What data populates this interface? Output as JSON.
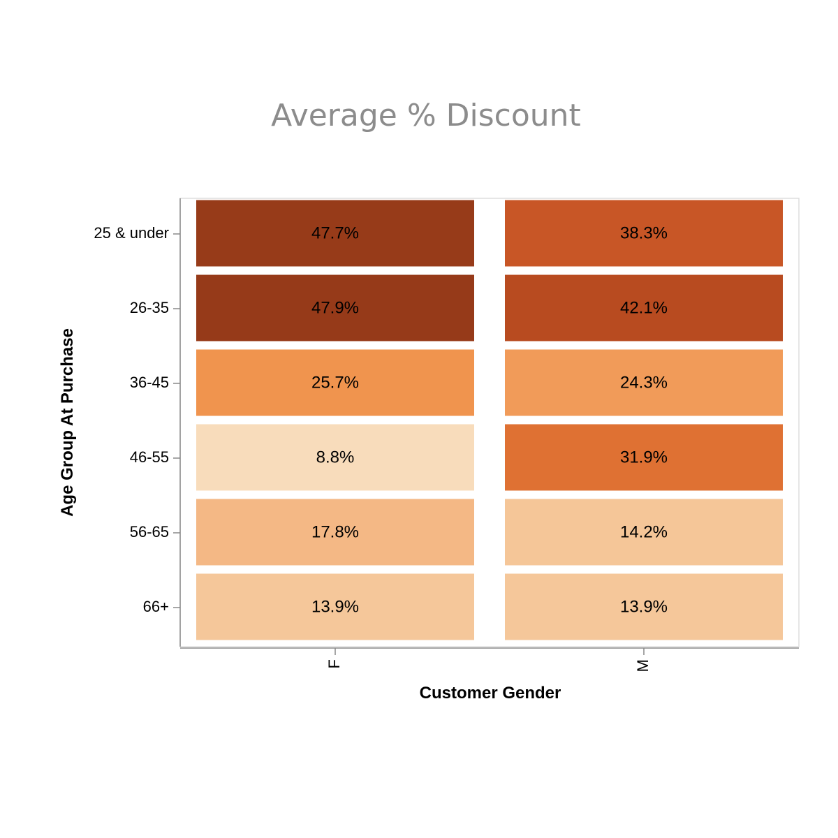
{
  "chart_data": {
    "type": "heatmap",
    "title": "Average % Discount",
    "xlabel": "Customer Gender",
    "ylabel": "Age Group At Purchase",
    "x_categories": [
      "F",
      "M"
    ],
    "y_categories": [
      "25 & under",
      "26-35",
      "36-45",
      "46-55",
      "56-65",
      "66+"
    ],
    "values": [
      [
        47.7,
        38.3
      ],
      [
        47.9,
        42.1
      ],
      [
        25.7,
        24.3
      ],
      [
        8.8,
        31.9
      ],
      [
        17.8,
        14.2
      ],
      [
        13.9,
        13.9
      ]
    ],
    "value_labels": [
      [
        "47.7%",
        "38.3%"
      ],
      [
        "47.9%",
        "42.1%"
      ],
      [
        "25.7%",
        "24.3%"
      ],
      [
        "8.8%",
        "31.9%"
      ],
      [
        "17.8%",
        "14.2%"
      ],
      [
        "13.9%",
        "13.9%"
      ]
    ],
    "color_scale": [
      "#f8dcbb",
      "#f5c597",
      "#f3b07a",
      "#f0954f",
      "#e27435",
      "#cf5b28",
      "#b74a20",
      "#963a19"
    ],
    "legend": "none",
    "grid": false
  }
}
